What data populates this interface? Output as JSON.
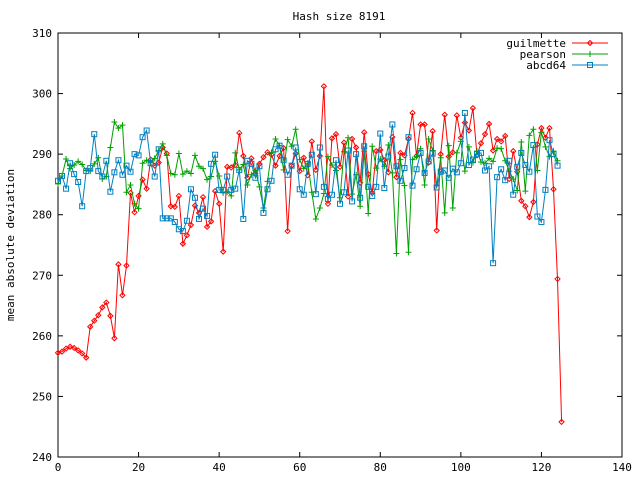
{
  "chart_data": {
    "type": "line",
    "title": "Hash size 8191",
    "xlabel": "",
    "ylabel": "mean absolute deviation",
    "xlim": [
      0,
      140
    ],
    "ylim": [
      240,
      310
    ],
    "xticks": [
      0,
      20,
      40,
      60,
      80,
      100,
      120,
      140
    ],
    "yticks": [
      240,
      250,
      260,
      270,
      280,
      290,
      300,
      310
    ],
    "grid": false,
    "legend_position": "top-right",
    "series": [
      {
        "name": "guilmette",
        "color": "#ff0000",
        "marker": "diamond",
        "values": [
          257.2,
          257.4,
          257.9,
          258.2,
          258.0,
          257.6,
          257.1,
          256.4,
          261.5,
          262.5,
          263.4,
          264.7,
          265.5,
          263.3,
          259.6,
          271.8,
          266.7,
          271.6,
          283.6,
          280.4,
          283.1,
          285.8,
          284.3,
          289.1,
          288.1,
          288.6,
          291.1,
          290.1,
          281.4,
          281.3,
          283.1,
          275.2,
          276.6,
          278.3,
          281.5,
          280.3,
          282.9,
          278.0,
          278.9,
          283.9,
          281.8,
          273.9,
          287.9,
          287.8,
          288.2,
          293.5,
          289.7,
          286.1,
          289.3,
          286.8,
          288.4,
          289.5,
          290.3,
          289.9,
          288.1,
          289.7,
          291.0,
          277.3,
          288.1,
          290.1,
          287.2,
          289.4,
          286.5,
          292.1,
          287.4,
          289.7,
          301.2,
          281.8,
          292.6,
          293.3,
          287.9,
          291.9,
          283.0,
          292.5,
          291.1,
          285.3,
          293.6,
          286.7,
          283.6,
          290.5,
          290.7,
          289.0,
          287.0,
          292.8,
          286.2,
          290.2,
          289.8,
          292.5,
          296.8,
          289.7,
          294.9,
          294.9,
          288.6,
          293.8,
          277.4,
          290.0,
          296.5,
          289.6,
          290.3,
          296.4,
          292.7,
          295.2,
          293.9,
          297.6,
          289.8,
          291.8,
          293.3,
          295.0,
          290.6,
          292.5,
          292.1,
          293.0,
          285.9,
          290.5,
          287.1,
          282.3,
          281.4,
          279.6,
          282.1,
          291.6,
          294.3,
          292.7,
          294.3,
          284.2,
          269.4,
          245.8
        ]
      },
      {
        "name": "pearson",
        "color": "#00a000",
        "marker": "plus",
        "values": [
          285.1,
          286.4,
          289.2,
          287.6,
          288.2,
          288.8,
          288.3,
          287.3,
          287.2,
          288.4,
          289.4,
          285.9,
          286.3,
          291.1,
          295.3,
          294.3,
          294.8,
          283.7,
          284.9,
          281.8,
          281.0,
          288.5,
          289.0,
          288.6,
          289.3,
          290.6,
          291.7,
          289.8,
          286.8,
          286.6,
          290.1,
          286.7,
          287.2,
          286.8,
          289.8,
          288.0,
          287.6,
          285.8,
          286.3,
          288.8,
          286.4,
          283.6,
          283.8,
          283.1,
          290.2,
          287.4,
          288.3,
          284.9,
          286.6,
          287.3,
          284.6,
          281.1,
          285.5,
          290.3,
          292.5,
          291.4,
          287.4,
          292.4,
          291.3,
          294.1,
          289.1,
          287.6,
          288.5,
          283.7,
          279.3,
          281.1,
          283.5,
          289.6,
          288.2,
          287.3,
          282.8,
          290.4,
          292.7,
          283.4,
          286.6,
          281.4,
          290.5,
          280.2,
          291.3,
          287.7,
          289.2,
          288.0,
          291.5,
          286.9,
          273.6,
          289.1,
          284.8,
          273.8,
          289.1,
          289.6,
          290.9,
          284.9,
          292.5,
          290.6,
          284.8,
          289.4,
          280.3,
          291.4,
          281.1,
          290.2,
          292.1,
          287.2,
          291.2,
          288.6,
          290.5,
          288.7,
          288.5,
          289.3,
          288.8,
          291.0,
          290.9,
          288.9,
          287.2,
          285.9,
          284.0,
          292.0,
          283.9,
          293.1,
          294.1,
          287.3,
          293.6,
          291.2,
          289.6,
          290.5,
          288.9
        ]
      },
      {
        "name": "abcd64",
        "color": "#0080c0",
        "marker": "square",
        "values": [
          285.6,
          286.4,
          284.3,
          288.5,
          286.7,
          285.4,
          281.4,
          287.2,
          287.7,
          293.3,
          287.2,
          286.3,
          288.9,
          283.8,
          287.0,
          289.0,
          286.6,
          288.1,
          287.1,
          290.0,
          289.8,
          292.8,
          293.9,
          288.5,
          286.3,
          290.8,
          279.4,
          279.4,
          279.4,
          278.8,
          277.6,
          277.3,
          279.0,
          284.2,
          282.8,
          279.3,
          281.0,
          279.8,
          288.4,
          289.9,
          284.1,
          284.1,
          286.3,
          284.1,
          284.3,
          287.4,
          279.3,
          288.9,
          288.4,
          286.1,
          288.0,
          280.3,
          284.2,
          285.6,
          290.8,
          291.4,
          289.0,
          286.6,
          288.1,
          291.1,
          284.2,
          283.3,
          288.4,
          289.9,
          283.4,
          291.1,
          284.6,
          282.6,
          283.3,
          289.0,
          281.8,
          283.7,
          290.6,
          282.2,
          290.0,
          282.8,
          291.3,
          284.6,
          283.1,
          284.6,
          293.4,
          284.4,
          289.6,
          294.9,
          288.0,
          285.6,
          287.7,
          292.8,
          284.8,
          287.5,
          290.2,
          286.9,
          288.8,
          290.1,
          284.5,
          287.1,
          287.3,
          286.1,
          287.6,
          287.0,
          288.5,
          296.8,
          288.2,
          289.1,
          290.0,
          290.2,
          287.3,
          288.0,
          272.0,
          286.2,
          287.5,
          285.7,
          288.9,
          283.3,
          287.9,
          290.2,
          288.2,
          287.1,
          291.5,
          279.7,
          278.8,
          284.1,
          292.3,
          290.0,
          288.1
        ]
      }
    ]
  }
}
